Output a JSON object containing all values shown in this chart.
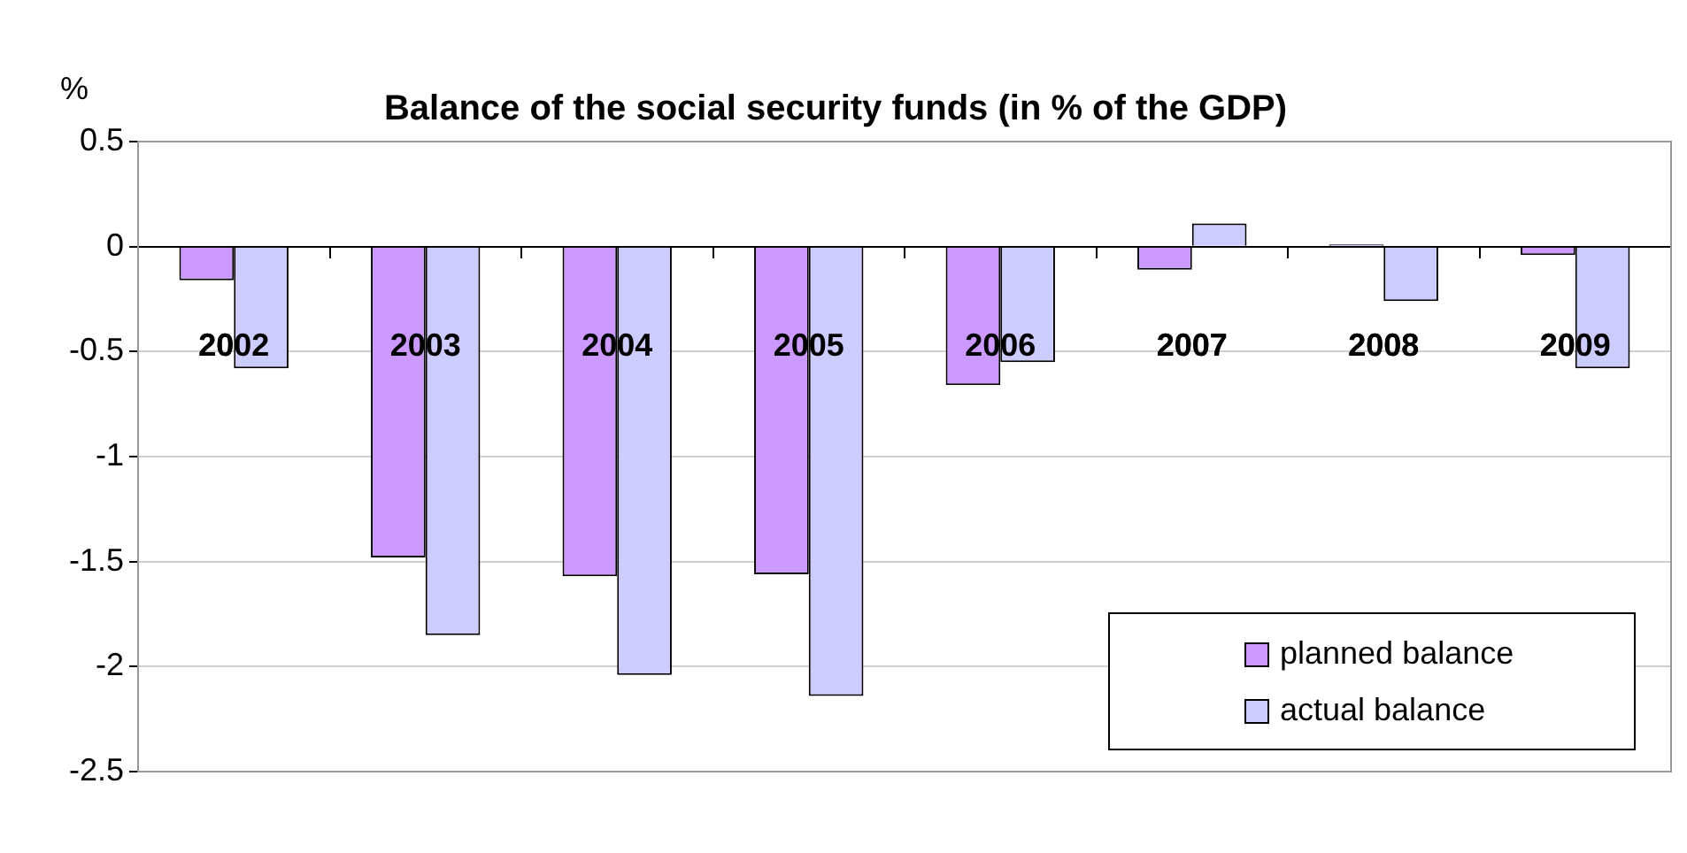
{
  "chart_data": {
    "type": "bar",
    "title": "Balance of the social security funds (in % of the GDP)",
    "ylabel": "%",
    "categories": [
      "2002",
      "2003",
      "2004",
      "2005",
      "2006",
      "2007",
      "2008",
      "2009"
    ],
    "series": [
      {
        "name": "planned balance",
        "color": "#cc99ff",
        "values": [
          -0.16,
          -1.48,
          -1.57,
          -1.56,
          -0.66,
          -0.11,
          0.01,
          -0.04
        ]
      },
      {
        "name": "actual balance",
        "color": "#ccccff",
        "values": [
          -0.58,
          -1.85,
          -2.04,
          -2.14,
          -0.55,
          0.11,
          -0.26,
          -0.58
        ]
      }
    ],
    "ylim": [
      -2.5,
      0.5
    ],
    "yticks": [
      -2.5,
      -2,
      -1.5,
      -1,
      -0.5,
      0,
      0.5
    ],
    "grid": "y",
    "legend": "bottom right"
  }
}
